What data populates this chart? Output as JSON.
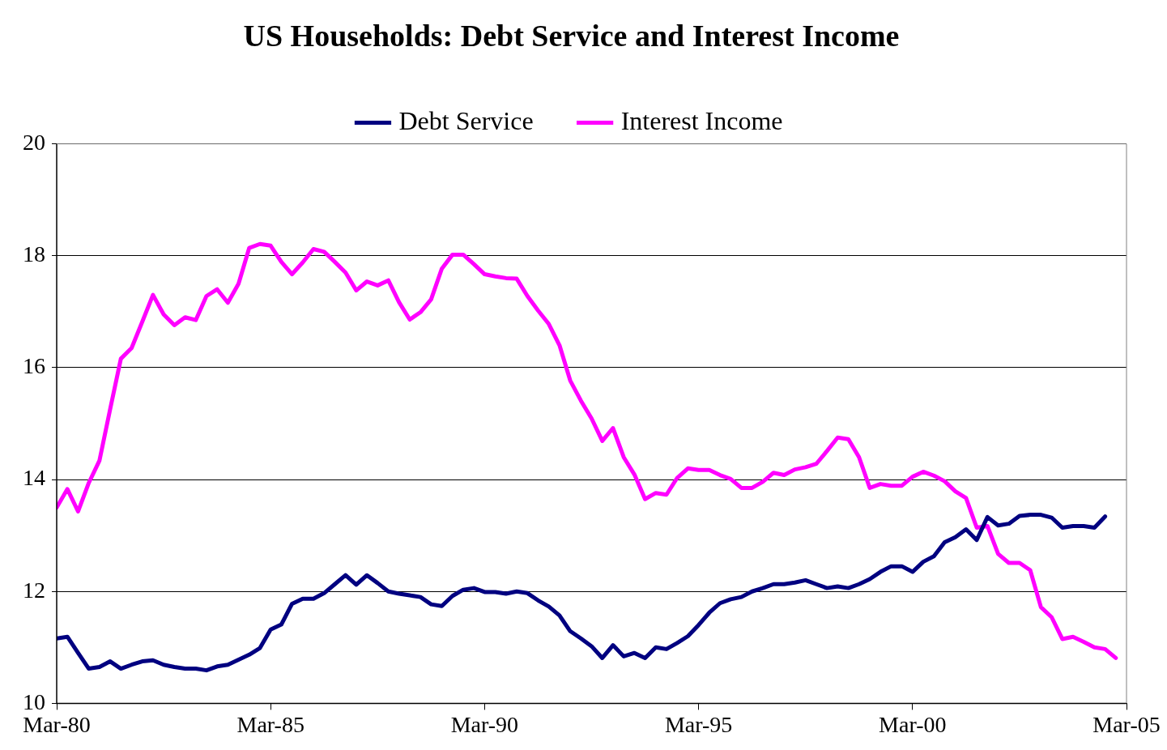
{
  "chart_data": {
    "type": "line",
    "title": "US Households: Debt Service and Interest Income",
    "x": [
      "1980-03",
      "1980-06",
      "1980-09",
      "1980-12",
      "1981-03",
      "1981-06",
      "1981-09",
      "1981-12",
      "1982-03",
      "1982-06",
      "1982-09",
      "1982-12",
      "1983-03",
      "1983-06",
      "1983-09",
      "1983-12",
      "1984-03",
      "1984-06",
      "1984-09",
      "1984-12",
      "1985-03",
      "1985-06",
      "1985-09",
      "1985-12",
      "1986-03",
      "1986-06",
      "1986-09",
      "1986-12",
      "1987-03",
      "1987-06",
      "1987-09",
      "1987-12",
      "1988-03",
      "1988-06",
      "1988-09",
      "1988-12",
      "1989-03",
      "1989-06",
      "1989-09",
      "1989-12",
      "1990-03",
      "1990-06",
      "1990-09",
      "1990-12",
      "1991-03",
      "1991-06",
      "1991-09",
      "1991-12",
      "1992-03",
      "1992-06",
      "1992-09",
      "1992-12",
      "1993-03",
      "1993-06",
      "1993-09",
      "1993-12",
      "1994-03",
      "1994-06",
      "1994-09",
      "1994-12",
      "1995-03",
      "1995-06",
      "1995-09",
      "1995-12",
      "1996-03",
      "1996-06",
      "1996-09",
      "1996-12",
      "1997-03",
      "1997-06",
      "1997-09",
      "1997-12",
      "1998-03",
      "1998-06",
      "1998-09",
      "1998-12",
      "1999-03",
      "1999-06",
      "1999-09",
      "1999-12",
      "2000-03",
      "2000-06",
      "2000-09",
      "2000-12",
      "2001-03",
      "2001-06",
      "2001-09",
      "2001-12",
      "2002-03",
      "2002-06",
      "2002-09",
      "2002-12",
      "2003-03",
      "2003-06",
      "2003-09",
      "2003-12",
      "2004-03",
      "2004-06",
      "2004-09",
      "2004-12"
    ],
    "series": [
      {
        "name": "Debt Service",
        "color": "#000080",
        "values": [
          11.16,
          11.19,
          10.9,
          10.62,
          10.65,
          10.75,
          10.62,
          10.69,
          10.75,
          10.77,
          10.69,
          10.65,
          10.62,
          10.62,
          10.59,
          10.66,
          10.69,
          10.78,
          10.87,
          10.99,
          11.32,
          11.41,
          11.78,
          11.87,
          11.87,
          11.97,
          12.13,
          12.29,
          12.12,
          12.29,
          12.15,
          12.0,
          11.96,
          11.93,
          11.9,
          11.77,
          11.74,
          11.92,
          12.03,
          12.06,
          11.99,
          11.99,
          11.96,
          12.0,
          11.97,
          11.84,
          11.73,
          11.57,
          11.29,
          11.16,
          11.02,
          10.81,
          11.04,
          10.84,
          10.9,
          10.81,
          11.0,
          10.97,
          11.08,
          11.2,
          11.4,
          11.62,
          11.79,
          11.86,
          11.9,
          12.0,
          12.06,
          12.13,
          12.13,
          12.16,
          12.2,
          12.13,
          12.06,
          12.09,
          12.06,
          12.13,
          12.22,
          12.35,
          12.45,
          12.45,
          12.35,
          12.53,
          12.63,
          12.88,
          12.97,
          13.11,
          12.92,
          13.33,
          13.18,
          13.21,
          13.35,
          13.37,
          13.37,
          13.32,
          13.14,
          13.17,
          13.17,
          13.14,
          13.34,
          null
        ]
      },
      {
        "name": "Interest Income",
        "color": "#ff00ff",
        "values": [
          13.5,
          13.83,
          13.43,
          13.94,
          14.34,
          15.26,
          16.16,
          16.35,
          16.82,
          17.3,
          16.95,
          16.76,
          16.9,
          16.85,
          17.28,
          17.4,
          17.16,
          17.5,
          18.14,
          18.21,
          18.18,
          17.89,
          17.67,
          17.88,
          18.12,
          18.07,
          17.89,
          17.7,
          17.38,
          17.54,
          17.47,
          17.56,
          17.17,
          16.86,
          16.99,
          17.22,
          17.77,
          18.02,
          18.02,
          17.85,
          17.67,
          17.63,
          17.6,
          17.59,
          17.28,
          17.02,
          16.78,
          16.4,
          15.77,
          15.41,
          15.09,
          14.69,
          14.92,
          14.4,
          14.09,
          13.65,
          13.76,
          13.73,
          14.03,
          14.2,
          14.17,
          14.17,
          14.08,
          14.01,
          13.85,
          13.85,
          13.96,
          14.12,
          14.08,
          14.18,
          14.22,
          14.28,
          14.51,
          14.75,
          14.72,
          14.4,
          13.85,
          13.92,
          13.89,
          13.89,
          14.05,
          14.14,
          14.07,
          13.97,
          13.79,
          13.67,
          13.14,
          13.17,
          12.67,
          12.51,
          12.51,
          12.38,
          11.72,
          11.54,
          11.15,
          11.19,
          11.1,
          11.0,
          10.97,
          10.81
        ]
      }
    ],
    "xlim": [
      "1980-03",
      "2005-03"
    ],
    "xticks": [
      {
        "value": "1980-03",
        "label": "Mar-80"
      },
      {
        "value": "1985-03",
        "label": "Mar-85"
      },
      {
        "value": "1990-03",
        "label": "Mar-90"
      },
      {
        "value": "1995-03",
        "label": "Mar-95"
      },
      {
        "value": "2000-03",
        "label": "Mar-00"
      },
      {
        "value": "2005-03",
        "label": "Mar-05"
      }
    ],
    "ylim": [
      10,
      20
    ],
    "yticks": [
      10,
      12,
      14,
      16,
      18,
      20
    ],
    "grid": "y",
    "legend": "top",
    "marker": "none",
    "line_style": "solid"
  }
}
